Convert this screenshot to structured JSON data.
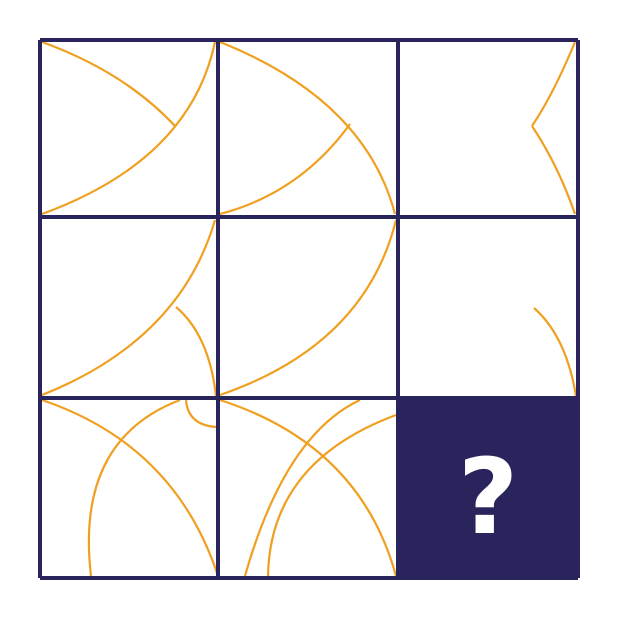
{
  "puzzle": {
    "question_mark": "?",
    "colors": {
      "grid": "#2a245c",
      "curve": "#f0a020",
      "background": "#ffffff",
      "question_text": "#ffffff"
    },
    "rows": 3,
    "cols": 3,
    "missing_cell": {
      "row": 3,
      "col": 3
    }
  }
}
